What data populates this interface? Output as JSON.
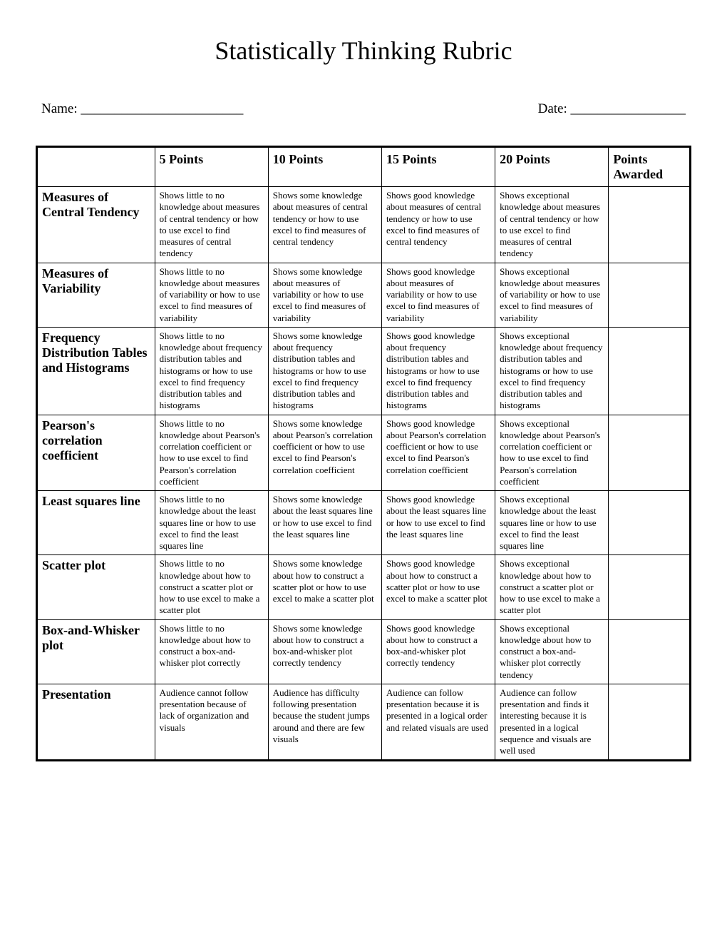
{
  "title": "Statistically Thinking Rubric",
  "name_label": "Name:  ________________________",
  "date_label": "Date:  _________________",
  "columns": [
    "",
    "5 Points",
    "10 Points",
    "15 Points",
    "20 Points",
    "Points Awarded"
  ],
  "rows": [
    {
      "label": "Measures of Central Tendency",
      "c5": "Shows little to no knowledge about measures of central tendency or how to use excel to find measures of central tendency",
      "c10": "Shows some knowledge about measures of central tendency or how to use excel to find measures of central tendency",
      "c15": "Shows good knowledge about measures of central tendency or how to use excel to find measures of central tendency",
      "c20": "Shows exceptional knowledge about measures of central tendency or how to use excel to find measures of central tendency"
    },
    {
      "label": "Measures of Variability",
      "c5": "Shows little to no knowledge about measures of variability or how to use excel to find measures of variability",
      "c10": "Shows some knowledge about measures of variability or how to use excel to find measures of variability",
      "c15": "Shows good knowledge about measures of variability or how to use excel to find measures of variability",
      "c20": "Shows exceptional knowledge about measures of variability or how to use excel to find measures of variability"
    },
    {
      "label": "Frequency Distribution Tables and Histograms",
      "c5": "Shows little to no knowledge about frequency distribution tables and histograms or how to use excel to find frequency distribution tables and histograms",
      "c10": "Shows some knowledge about frequency distribution tables and histograms or how to use excel to find frequency distribution tables and histograms",
      "c15": "Shows good knowledge about frequency distribution tables and histograms or how to use excel to find frequency distribution tables and histograms",
      "c20": "Shows exceptional knowledge about frequency distribution tables and histograms or how to use excel to find frequency distribution tables and histograms"
    },
    {
      "label": "Pearson's correlation coefficient",
      "c5": "Shows little to no knowledge about Pearson's correlation coefficient or how to use excel to find Pearson's correlation coefficient",
      "c10": "Shows some knowledge about Pearson's correlation coefficient or how to use excel to find Pearson's correlation coefficient",
      "c15": "Shows good knowledge about Pearson's correlation coefficient or how to use excel to find Pearson's correlation coefficient",
      "c20": "Shows exceptional knowledge about Pearson's correlation coefficient or how to use excel to find Pearson's correlation coefficient"
    },
    {
      "label": "Least squares line",
      "c5": "Shows little to no knowledge about the least squares line or how to use excel to find the least squares line",
      "c10": "Shows some knowledge about the least squares line or how to use excel to find the least squares line",
      "c15": "Shows good knowledge about the least squares line or how to use excel to find the least squares line",
      "c20": "Shows exceptional knowledge about the least squares line or how to use excel to find the least squares line"
    },
    {
      "label": "Scatter plot",
      "c5": "Shows little to no knowledge about how to construct a scatter plot or how to use excel to make a scatter plot",
      "c10": "Shows some knowledge about how to construct a scatter plot or how to use excel to make a scatter plot",
      "c15": "Shows good knowledge about how to construct a scatter plot or how to use excel to make a scatter plot",
      "c20": "Shows exceptional knowledge about how to construct a scatter plot or how to use excel to make a scatter plot"
    },
    {
      "label": "Box-and-Whisker plot",
      "c5": "Shows little to no knowledge about how to construct a box-and-whisker plot correctly",
      "c10": "Shows some knowledge about how to construct a box-and-whisker plot correctly tendency",
      "c15": "Shows good knowledge about how to construct a box-and-whisker plot correctly tendency",
      "c20": "Shows exceptional knowledge about how to construct a box-and-whisker plot correctly tendency"
    },
    {
      "label": "Presentation",
      "c5": "Audience cannot follow presentation because of lack of organization and visuals",
      "c10": "Audience has difficulty following presentation because the student jumps around and there are few visuals",
      "c15": "Audience can follow presentation because it is presented in a logical order and related visuals are used",
      "c20": "Audience can follow presentation and finds it interesting because it is presented in a logical sequence and visuals are well used"
    }
  ]
}
